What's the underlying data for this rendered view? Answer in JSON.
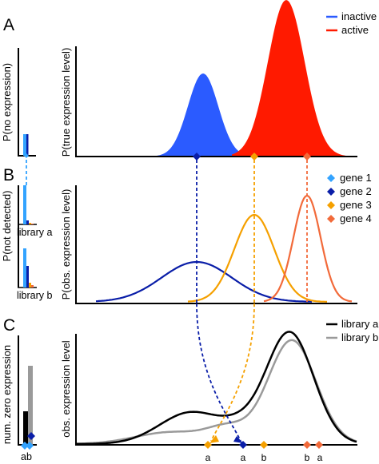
{
  "panels": {
    "A": {
      "letter": "A",
      "left_ylabel": "P(no expression)",
      "main_ylabel": "P(true expression level)",
      "legend": [
        {
          "label": "inactive",
          "color": "#2b5bff"
        },
        {
          "label": "active",
          "color": "#ff1a00"
        }
      ]
    },
    "B": {
      "letter": "B",
      "left_ylabel": "P(not detected)",
      "main_ylabel": "P(obs. expression level)",
      "left_library_labels": [
        "library a",
        "library b"
      ],
      "legend": [
        {
          "label": "gene 1",
          "color": "#33a3ff"
        },
        {
          "label": "gene 2",
          "color": "#0a1ea8"
        },
        {
          "label": "gene 3",
          "color": "#f5a000"
        },
        {
          "label": "gene 4",
          "color": "#f26a3a"
        }
      ]
    },
    "C": {
      "letter": "C",
      "left_ylabel": "num. zero expression",
      "main_ylabel": "obs. expression level",
      "left_xticks": "ab",
      "legend": [
        {
          "label": "library a",
          "color": "#000000"
        },
        {
          "label": "library b",
          "color": "#9a9a9a"
        }
      ],
      "xtick_labels": [
        "a",
        "a",
        "b",
        "b",
        "a"
      ]
    }
  },
  "colors": {
    "inactive": "#2b5bff",
    "active": "#ff1a00",
    "gene1": "#33a3ff",
    "gene2": "#0a1ea8",
    "gene3": "#f5a000",
    "gene4": "#f26a3a",
    "library_a": "#000000",
    "library_b": "#9a9a9a"
  }
}
